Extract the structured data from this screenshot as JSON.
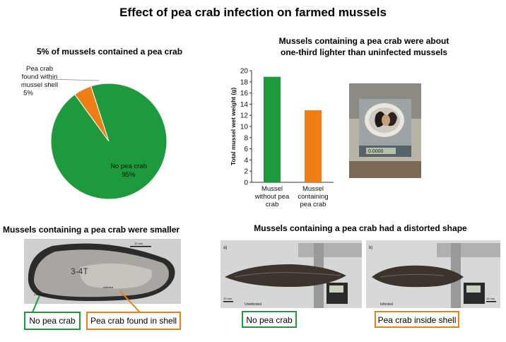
{
  "page": {
    "title": "Effect of pea crab infection on farmed mussels",
    "pie_title": "5% of mussels contained a pea crab",
    "bar_title_line1": "Mussels containing a pea crab were about",
    "bar_title_line2": "one-third lighter than uninfected mussels",
    "small_title": "Mussels containing a pea crab were smaller",
    "shape_title": "Mussels containing a pea crab had a distorted shape"
  },
  "chart_data": [
    {
      "type": "pie",
      "title": "5% of mussels contained a pea crab",
      "slices": [
        {
          "label_lines": [
            "No pea crab",
            "95%"
          ],
          "value": 95,
          "color": "#1e9a3e"
        },
        {
          "label_lines": [
            "Pea crab",
            "found within",
            "mussel shell",
            "5%"
          ],
          "value": 5,
          "color": "#ef7e14"
        }
      ]
    },
    {
      "type": "bar",
      "title": "Mussels containing a pea crab were about one-third lighter than uninfected mussels",
      "categories": [
        [
          "Mussel",
          "without pea",
          "crab"
        ],
        [
          "Mussel",
          "containing",
          "pea crab"
        ]
      ],
      "values": [
        18.9,
        12.9
      ],
      "colors": [
        "#1e9a3e",
        "#ef7e14"
      ],
      "ylabel": "Total mussel wet weight (g)",
      "ylim": [
        0,
        20
      ],
      "yticks": [
        0,
        2,
        4,
        6,
        8,
        10,
        12,
        14,
        16,
        18,
        20
      ],
      "grid": false
    }
  ],
  "photos": {
    "shell_scale": "10 mm",
    "shell_uninfected": "Uninfected",
    "shell_infected": "Infected",
    "panel_a": "a)",
    "panel_b": "b)",
    "panel_a_scale": "10 mm",
    "panel_b_scale": "10 mm",
    "panel_a_caption": "Uninfected",
    "panel_b_caption": "Infected",
    "scale_readout": "0.0000"
  },
  "labels": {
    "no_crab_1": "No pea crab",
    "crab_in_shell": "Pea crab found in shell",
    "no_crab_2": "No pea crab",
    "crab_inside_shell": "Pea crab inside shell"
  },
  "colors": {
    "green": "#1e9a3e",
    "orange": "#ef7e14"
  }
}
